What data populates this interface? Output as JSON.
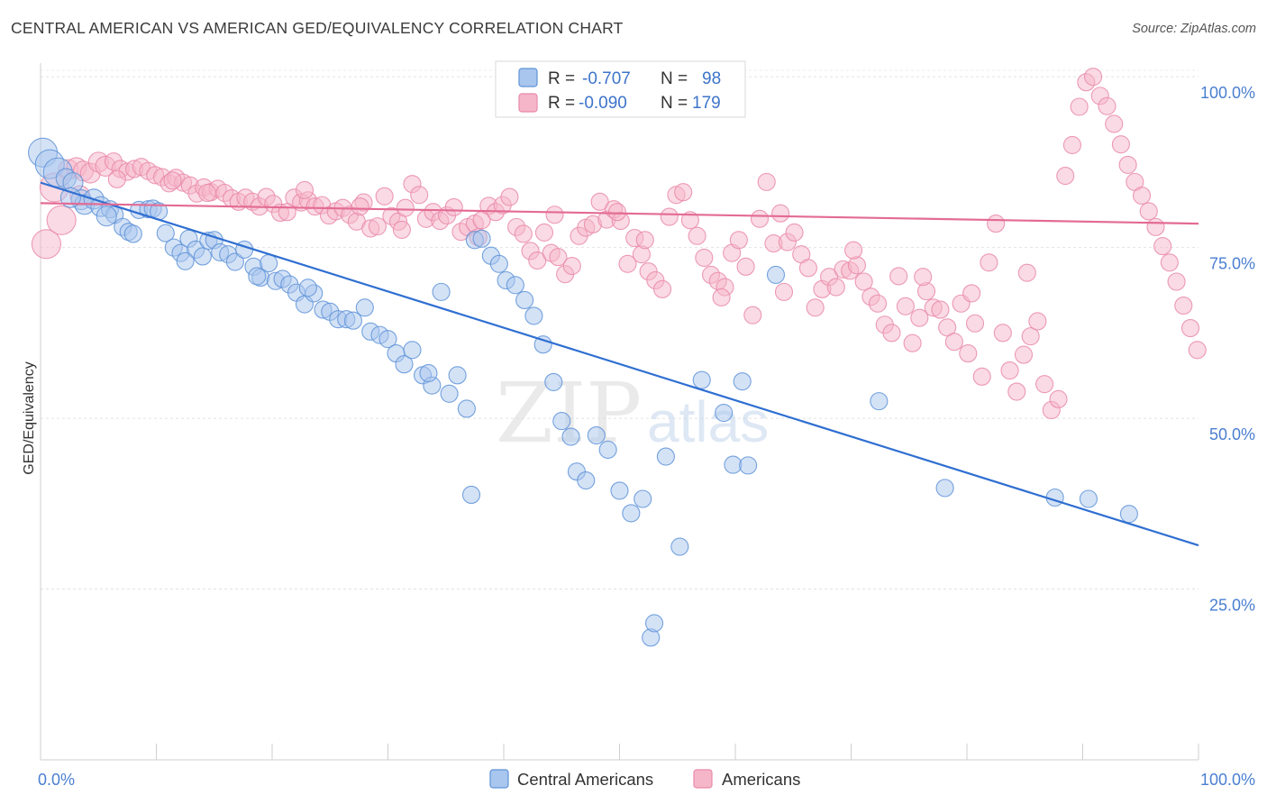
{
  "title": "CENTRAL AMERICAN VS AMERICAN GED/EQUIVALENCY CORRELATION CHART",
  "source": "Source: ZipAtlas.com",
  "watermark": {
    "zip": "ZIP",
    "atlas": "atlas"
  },
  "colors": {
    "blue_fill": "#a9c6ee",
    "blue_stroke": "#5e93d8",
    "blue_line": "#2f6fd1",
    "pink_fill": "#f5b6ca",
    "pink_stroke": "#e98aa9",
    "pink_line": "#e36b94",
    "tick_label": "#4a7fd0"
  },
  "legend": {
    "rows": [
      {
        "r_label": "R =",
        "r_value": "-0.707",
        "n_label": "N =",
        "n_value": "98"
      },
      {
        "r_label": "R =",
        "r_value": "-0.090",
        "n_label": "N =",
        "n_value": "179"
      }
    ]
  },
  "chart_data": {
    "type": "scatter",
    "title": "CENTRAL AMERICAN VS AMERICAN GED/EQUIVALENCY CORRELATION CHART",
    "xlabel": "",
    "ylabel": "GED/Equivalency",
    "xlim": [
      0,
      100
    ],
    "ylim": [
      0,
      102
    ],
    "x_tick_labels": [
      "0.0%",
      "100.0%"
    ],
    "y_ticks": [
      25,
      50,
      75,
      100
    ],
    "y_tick_labels": [
      "25.0%",
      "50.0%",
      "75.0%",
      "100.0%"
    ],
    "grid": true,
    "legend_position": "bottom",
    "series": [
      {
        "name": "Central Americans",
        "r": -0.707,
        "n": 98,
        "trend": {
          "x": [
            0,
            100
          ],
          "y": [
            84.5,
            31.4
          ]
        },
        "points": [
          [
            0.2,
            88.9
          ],
          [
            0.8,
            87.2
          ],
          [
            1.5,
            86.0
          ],
          [
            2.2,
            85.1
          ],
          [
            2.8,
            84.5
          ],
          [
            3.5,
            82.0
          ],
          [
            3.8,
            81.3
          ],
          [
            4.6,
            82.1
          ],
          [
            5.2,
            81.0
          ],
          [
            6.0,
            80.6
          ],
          [
            6.4,
            79.8
          ],
          [
            7.1,
            78.0
          ],
          [
            7.6,
            77.3
          ],
          [
            8.0,
            77.0
          ],
          [
            8.5,
            80.5
          ],
          [
            9.3,
            80.6
          ],
          [
            9.7,
            80.7
          ],
          [
            10.2,
            80.3
          ],
          [
            10.8,
            77.1
          ],
          [
            11.5,
            75.0
          ],
          [
            12.1,
            74.2
          ],
          [
            12.8,
            76.3
          ],
          [
            13.4,
            74.7
          ],
          [
            14.0,
            73.7
          ],
          [
            14.5,
            76.0
          ],
          [
            15.0,
            76.1
          ],
          [
            15.5,
            74.3
          ],
          [
            16.2,
            74.0
          ],
          [
            16.8,
            72.9
          ],
          [
            17.6,
            74.7
          ],
          [
            18.4,
            72.2
          ],
          [
            19.0,
            70.6
          ],
          [
            19.7,
            72.7
          ],
          [
            20.3,
            70.1
          ],
          [
            20.9,
            70.4
          ],
          [
            21.5,
            69.6
          ],
          [
            22.1,
            68.4
          ],
          [
            22.8,
            66.7
          ],
          [
            23.6,
            68.3
          ],
          [
            24.4,
            65.9
          ],
          [
            25.0,
            65.6
          ],
          [
            25.7,
            64.5
          ],
          [
            26.4,
            64.5
          ],
          [
            27.0,
            64.3
          ],
          [
            28.0,
            66.2
          ],
          [
            28.5,
            62.7
          ],
          [
            29.3,
            62.2
          ],
          [
            30.0,
            61.6
          ],
          [
            30.7,
            59.5
          ],
          [
            31.4,
            57.9
          ],
          [
            32.1,
            60.0
          ],
          [
            33.0,
            56.3
          ],
          [
            33.8,
            54.8
          ],
          [
            34.6,
            68.5
          ],
          [
            35.3,
            53.6
          ],
          [
            36.0,
            56.3
          ],
          [
            36.8,
            51.4
          ],
          [
            37.5,
            76.1
          ],
          [
            38.1,
            76.3
          ],
          [
            38.9,
            73.8
          ],
          [
            39.6,
            72.6
          ],
          [
            40.2,
            70.2
          ],
          [
            41.0,
            69.5
          ],
          [
            41.8,
            67.3
          ],
          [
            42.6,
            65.0
          ],
          [
            43.4,
            60.8
          ],
          [
            44.3,
            55.3
          ],
          [
            45.0,
            49.6
          ],
          [
            45.8,
            47.3
          ],
          [
            46.3,
            42.2
          ],
          [
            47.1,
            40.9
          ],
          [
            48.0,
            47.5
          ],
          [
            49.0,
            45.4
          ],
          [
            50.0,
            39.4
          ],
          [
            51.0,
            36.1
          ],
          [
            52.0,
            38.2
          ],
          [
            52.7,
            17.9
          ],
          [
            53.0,
            20.0
          ],
          [
            54.0,
            44.4
          ],
          [
            57.1,
            55.6
          ],
          [
            59.0,
            50.8
          ],
          [
            59.8,
            43.2
          ],
          [
            60.6,
            55.4
          ],
          [
            63.5,
            71.0
          ],
          [
            72.4,
            52.5
          ],
          [
            78.1,
            39.8
          ],
          [
            87.6,
            38.4
          ],
          [
            90.5,
            38.2
          ],
          [
            94.0,
            36.0
          ],
          [
            2.6,
            82.3
          ],
          [
            5.7,
            79.6
          ],
          [
            12.5,
            73.0
          ],
          [
            18.7,
            70.8
          ],
          [
            23.1,
            69.1
          ],
          [
            33.5,
            56.6
          ],
          [
            37.2,
            38.8
          ],
          [
            55.2,
            31.2
          ],
          [
            61.1,
            43.1
          ]
        ]
      },
      {
        "name": "Americans",
        "r": -0.09,
        "n": 179,
        "trend": {
          "x": [
            0,
            100
          ],
          "y": [
            81.5,
            78.5
          ]
        },
        "points": [
          [
            0.5,
            75.5
          ],
          [
            1.2,
            83.8
          ],
          [
            1.8,
            79.0
          ],
          [
            2.4,
            86.4
          ],
          [
            3.1,
            86.7
          ],
          [
            3.7,
            86.2
          ],
          [
            4.3,
            85.9
          ],
          [
            5.0,
            87.5
          ],
          [
            5.6,
            86.9
          ],
          [
            6.3,
            87.6
          ],
          [
            6.9,
            86.5
          ],
          [
            7.5,
            86.1
          ],
          [
            8.1,
            86.5
          ],
          [
            8.7,
            86.8
          ],
          [
            9.3,
            86.2
          ],
          [
            9.9,
            85.6
          ],
          [
            10.5,
            85.3
          ],
          [
            11.1,
            84.4
          ],
          [
            11.7,
            85.2
          ],
          [
            12.3,
            84.5
          ],
          [
            12.9,
            84.1
          ],
          [
            13.5,
            82.9
          ],
          [
            14.1,
            83.8
          ],
          [
            14.7,
            83.1
          ],
          [
            15.3,
            83.6
          ],
          [
            15.9,
            83.0
          ],
          [
            16.5,
            82.2
          ],
          [
            17.1,
            81.7
          ],
          [
            17.7,
            82.3
          ],
          [
            18.3,
            81.7
          ],
          [
            18.9,
            81.0
          ],
          [
            19.5,
            82.4
          ],
          [
            20.1,
            81.4
          ],
          [
            20.7,
            80.1
          ],
          [
            21.3,
            80.2
          ],
          [
            21.9,
            82.3
          ],
          [
            22.5,
            81.6
          ],
          [
            23.1,
            81.9
          ],
          [
            23.7,
            81.0
          ],
          [
            24.3,
            81.2
          ],
          [
            24.9,
            79.7
          ],
          [
            25.5,
            80.3
          ],
          [
            26.1,
            80.8
          ],
          [
            26.7,
            79.8
          ],
          [
            27.3,
            78.8
          ],
          [
            27.9,
            81.6
          ],
          [
            28.5,
            77.8
          ],
          [
            29.1,
            78.1
          ],
          [
            29.7,
            82.5
          ],
          [
            30.3,
            79.6
          ],
          [
            30.9,
            78.8
          ],
          [
            31.5,
            80.8
          ],
          [
            32.1,
            84.3
          ],
          [
            32.7,
            82.7
          ],
          [
            33.3,
            79.2
          ],
          [
            33.9,
            80.2
          ],
          [
            34.5,
            78.9
          ],
          [
            35.1,
            79.7
          ],
          [
            35.7,
            80.9
          ],
          [
            36.3,
            77.3
          ],
          [
            36.9,
            78.0
          ],
          [
            37.5,
            78.5
          ],
          [
            38.1,
            79.0
          ],
          [
            38.7,
            81.1
          ],
          [
            39.3,
            80.2
          ],
          [
            39.9,
            81.2
          ],
          [
            40.5,
            82.4
          ],
          [
            41.1,
            78.0
          ],
          [
            41.7,
            77.0
          ],
          [
            42.3,
            74.5
          ],
          [
            42.9,
            73.1
          ],
          [
            43.5,
            77.2
          ],
          [
            44.1,
            74.2
          ],
          [
            44.7,
            73.6
          ],
          [
            45.3,
            71.1
          ],
          [
            45.9,
            72.3
          ],
          [
            46.5,
            76.7
          ],
          [
            47.1,
            77.9
          ],
          [
            47.7,
            78.4
          ],
          [
            48.3,
            81.7
          ],
          [
            48.9,
            79.1
          ],
          [
            49.5,
            80.6
          ],
          [
            50.1,
            78.9
          ],
          [
            50.7,
            72.6
          ],
          [
            51.3,
            76.4
          ],
          [
            51.9,
            74.0
          ],
          [
            52.5,
            71.5
          ],
          [
            53.1,
            70.2
          ],
          [
            53.7,
            68.9
          ],
          [
            54.3,
            79.5
          ],
          [
            54.9,
            82.7
          ],
          [
            55.5,
            83.1
          ],
          [
            56.1,
            79.0
          ],
          [
            56.7,
            76.7
          ],
          [
            57.3,
            73.5
          ],
          [
            57.9,
            71.0
          ],
          [
            58.5,
            70.1
          ],
          [
            59.1,
            69.2
          ],
          [
            59.7,
            74.2
          ],
          [
            60.3,
            76.1
          ],
          [
            60.9,
            72.2
          ],
          [
            61.5,
            65.1
          ],
          [
            62.1,
            79.2
          ],
          [
            62.7,
            84.6
          ],
          [
            63.3,
            75.6
          ],
          [
            63.9,
            80.0
          ],
          [
            64.5,
            75.8
          ],
          [
            65.1,
            77.2
          ],
          [
            65.7,
            74.0
          ],
          [
            66.3,
            72.0
          ],
          [
            66.9,
            66.2
          ],
          [
            67.5,
            68.9
          ],
          [
            68.1,
            70.7
          ],
          [
            68.7,
            69.2
          ],
          [
            69.3,
            71.8
          ],
          [
            69.9,
            71.6
          ],
          [
            70.5,
            72.4
          ],
          [
            71.1,
            70.0
          ],
          [
            71.7,
            67.8
          ],
          [
            72.3,
            66.8
          ],
          [
            72.9,
            63.7
          ],
          [
            73.5,
            62.5
          ],
          [
            74.1,
            70.8
          ],
          [
            74.7,
            66.4
          ],
          [
            75.3,
            61.0
          ],
          [
            75.9,
            64.7
          ],
          [
            76.5,
            68.6
          ],
          [
            77.1,
            66.2
          ],
          [
            77.7,
            65.9
          ],
          [
            78.3,
            63.3
          ],
          [
            78.9,
            61.2
          ],
          [
            79.5,
            66.8
          ],
          [
            80.1,
            59.5
          ],
          [
            80.7,
            63.9
          ],
          [
            81.3,
            56.1
          ],
          [
            81.9,
            72.8
          ],
          [
            82.5,
            78.5
          ],
          [
            83.1,
            62.5
          ],
          [
            83.7,
            57.0
          ],
          [
            84.3,
            53.9
          ],
          [
            84.9,
            59.3
          ],
          [
            85.5,
            62.0
          ],
          [
            86.1,
            64.2
          ],
          [
            86.7,
            55.0
          ],
          [
            87.3,
            51.2
          ],
          [
            87.9,
            52.8
          ],
          [
            88.5,
            85.5
          ],
          [
            89.1,
            90.0
          ],
          [
            89.7,
            95.6
          ],
          [
            90.3,
            99.2
          ],
          [
            90.9,
            100.0
          ],
          [
            91.5,
            97.2
          ],
          [
            92.1,
            95.7
          ],
          [
            92.7,
            93.1
          ],
          [
            93.3,
            90.1
          ],
          [
            93.9,
            87.1
          ],
          [
            94.5,
            84.6
          ],
          [
            95.1,
            82.6
          ],
          [
            95.7,
            80.3
          ],
          [
            96.3,
            78.0
          ],
          [
            96.9,
            75.2
          ],
          [
            97.5,
            72.8
          ],
          [
            98.1,
            70.0
          ],
          [
            98.7,
            66.5
          ],
          [
            99.3,
            63.2
          ],
          [
            99.9,
            60.0
          ],
          [
            3.4,
            82.6
          ],
          [
            11.4,
            84.8
          ],
          [
            22.8,
            83.4
          ],
          [
            31.2,
            77.6
          ],
          [
            37.8,
            76.5
          ],
          [
            44.4,
            79.8
          ],
          [
            52.2,
            76.1
          ],
          [
            58.8,
            67.7
          ],
          [
            64.2,
            68.5
          ],
          [
            70.2,
            74.6
          ],
          [
            76.2,
            70.7
          ],
          [
            80.4,
            68.3
          ],
          [
            85.2,
            71.3
          ],
          [
            6.6,
            85.0
          ],
          [
            14.4,
            83.0
          ],
          [
            27.6,
            81.0
          ],
          [
            49.8,
            80.2
          ]
        ]
      }
    ]
  },
  "bottom_legend": [
    {
      "label": "Central Americans"
    },
    {
      "label": "Americans"
    }
  ]
}
